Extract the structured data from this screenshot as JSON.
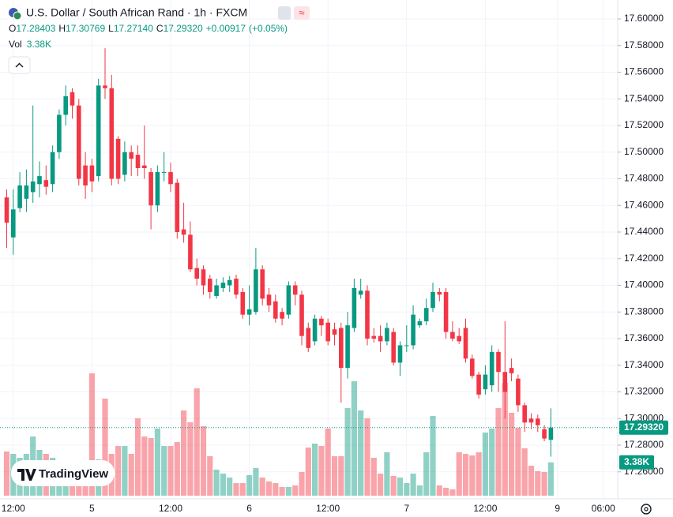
{
  "chart_data": {
    "type": "candlestick",
    "title": "U.S. Dollar / South African Rand · 1h · FXCM",
    "categories": [
      null,
      "12:00",
      null,
      null,
      null,
      null,
      null,
      null,
      null,
      null,
      null,
      null,
      null,
      "5",
      null,
      null,
      null,
      null,
      null,
      null,
      null,
      null,
      null,
      null,
      null,
      "12:00",
      null,
      null,
      null,
      null,
      null,
      null,
      null,
      null,
      null,
      null,
      null,
      "6",
      null,
      null,
      null,
      null,
      null,
      null,
      null,
      null,
      null,
      null,
      null,
      "12:00",
      null,
      null,
      null,
      null,
      null,
      null,
      null,
      null,
      null,
      null,
      null,
      "7",
      null,
      null,
      null,
      null,
      null,
      null,
      null,
      null,
      null,
      null,
      null,
      "12:00",
      null,
      null,
      null,
      null,
      null,
      null,
      null,
      null,
      null,
      null,
      "9",
      null,
      null,
      null,
      null,
      null,
      null,
      "06:00",
      null,
      null
    ],
    "open": [
      17.466,
      17.436,
      17.458,
      17.465,
      17.47,
      17.476,
      17.479,
      17.476,
      17.5,
      17.528,
      17.545,
      17.535,
      17.49,
      17.49,
      17.482,
      17.55,
      17.548,
      17.51,
      17.483,
      17.5,
      17.498,
      17.49,
      17.485,
      17.46,
      17.485,
      17.485,
      17.477,
      17.442,
      17.438,
      17.413,
      17.412,
      17.405,
      17.392,
      17.398,
      17.4,
      17.405,
      17.395,
      17.378,
      17.38,
      17.412,
      17.393,
      17.388,
      17.38,
      17.378,
      17.4,
      17.393,
      17.368,
      17.358,
      17.375,
      17.372,
      17.367,
      17.368,
      17.338,
      17.368,
      17.393,
      17.396,
      17.362,
      17.362,
      17.358,
      17.365,
      17.342,
      17.355,
      17.355,
      17.37,
      17.373,
      17.383,
      17.395,
      17.395,
      17.365,
      17.362,
      17.368,
      17.345,
      17.333,
      17.322,
      17.325,
      17.35,
      17.335,
      17.338,
      17.33,
      17.31,
      17.3,
      17.3,
      17.292,
      17.28403,
      null,
      null,
      null,
      null,
      null,
      null,
      null,
      null,
      null,
      null
    ],
    "high": [
      17.472,
      17.472,
      17.485,
      17.487,
      17.535,
      17.493,
      17.49,
      17.505,
      17.532,
      17.55,
      17.548,
      17.54,
      17.5,
      17.495,
      17.555,
      17.578,
      17.558,
      17.512,
      17.508,
      17.505,
      17.505,
      17.52,
      17.488,
      17.49,
      17.5,
      17.492,
      17.48,
      17.462,
      17.448,
      17.42,
      17.415,
      17.408,
      17.405,
      17.406,
      17.407,
      17.408,
      17.398,
      17.4,
      17.428,
      17.415,
      17.398,
      17.393,
      17.383,
      17.403,
      17.403,
      17.396,
      17.372,
      17.378,
      17.377,
      17.375,
      17.372,
      17.372,
      17.38,
      17.405,
      17.405,
      17.4,
      17.368,
      17.37,
      17.372,
      17.368,
      17.358,
      17.37,
      17.385,
      17.375,
      17.39,
      17.402,
      17.398,
      17.398,
      17.373,
      17.368,
      17.375,
      17.348,
      17.335,
      17.34,
      17.355,
      17.352,
      17.373,
      17.345,
      17.333,
      17.312,
      17.304,
      17.303,
      17.295,
      17.30769,
      null,
      null,
      null,
      null,
      null,
      null,
      null,
      null,
      null,
      null
    ],
    "low": [
      17.428,
      17.423,
      17.455,
      17.455,
      17.462,
      17.466,
      17.468,
      17.47,
      17.495,
      17.52,
      17.525,
      17.475,
      17.465,
      17.47,
      17.478,
      17.54,
      17.475,
      17.476,
      17.478,
      17.482,
      17.482,
      17.48,
      17.442,
      17.455,
      17.478,
      17.47,
      17.435,
      17.432,
      17.41,
      17.4,
      17.393,
      17.39,
      17.39,
      17.395,
      17.395,
      17.39,
      17.375,
      17.37,
      17.378,
      17.385,
      17.38,
      17.372,
      17.37,
      17.375,
      17.385,
      17.355,
      17.35,
      17.355,
      17.362,
      17.355,
      17.355,
      17.312,
      17.33,
      17.365,
      17.39,
      17.355,
      17.357,
      17.35,
      17.355,
      17.34,
      17.332,
      17.35,
      17.352,
      17.368,
      17.37,
      17.38,
      17.388,
      17.36,
      17.358,
      17.356,
      17.342,
      17.33,
      17.315,
      17.318,
      17.32,
      17.32,
      17.3,
      17.328,
      17.305,
      17.29,
      17.292,
      17.29,
      17.283,
      17.2714,
      null,
      null,
      null,
      null,
      null,
      null,
      null,
      null,
      null,
      null
    ],
    "close": [
      17.447,
      17.457,
      17.475,
      17.475,
      17.478,
      17.482,
      17.474,
      17.5,
      17.528,
      17.542,
      17.535,
      17.48,
      17.475,
      17.478,
      17.55,
      17.548,
      17.48,
      17.48,
      17.5,
      17.495,
      17.488,
      17.488,
      17.46,
      17.485,
      17.485,
      17.476,
      17.44,
      17.438,
      17.412,
      17.405,
      17.4,
      17.395,
      17.4,
      17.402,
      17.404,
      17.393,
      17.378,
      17.382,
      17.412,
      17.39,
      17.385,
      17.375,
      17.375,
      17.4,
      17.393,
      17.362,
      17.353,
      17.375,
      17.37,
      17.358,
      17.363,
      17.338,
      17.37,
      17.398,
      17.396,
      17.36,
      17.36,
      17.358,
      17.368,
      17.342,
      17.355,
      17.355,
      17.378,
      17.373,
      17.383,
      17.395,
      17.393,
      17.365,
      17.36,
      17.358,
      17.345,
      17.332,
      17.318,
      17.333,
      17.35,
      17.335,
      17.32,
      17.334,
      17.31,
      17.297,
      17.297,
      17.295,
      17.285,
      17.2932,
      null,
      null,
      null,
      null,
      null,
      null,
      null,
      null,
      null,
      null
    ],
    "volume": [
      4480,
      4240,
      3840,
      4240,
      6000,
      4640,
      4240,
      3840,
      3440,
      3440,
      3440,
      3440,
      3440,
      12400,
      3680,
      9840,
      4240,
      5040,
      5040,
      4240,
      7840,
      6000,
      5840,
      6800,
      5040,
      5040,
      5440,
      8640,
      7440,
      10880,
      7040,
      4000,
      2640,
      2240,
      1840,
      1280,
      1280,
      2080,
      2800,
      1840,
      1440,
      1280,
      880,
      880,
      1040,
      2400,
      4880,
      5280,
      5040,
      6800,
      4000,
      4000,
      8880,
      11600,
      8640,
      7840,
      3840,
      2240,
      4400,
      2000,
      1840,
      1280,
      2240,
      1040,
      4400,
      8080,
      1040,
      800,
      640,
      4400,
      4240,
      4080,
      4400,
      6400,
      6800,
      8880,
      11440,
      8400,
      6880,
      4800,
      3040,
      2480,
      2400,
      3380,
      null,
      null,
      null,
      null,
      null,
      null,
      null,
      null,
      null,
      null
    ],
    "up_color": "#089981",
    "down_color": "#f23645",
    "ylim": [
      17.2421,
      17.6142
    ],
    "yticks": [
      {
        "value": 17.26,
        "label": "17.26000"
      },
      {
        "value": 17.28,
        "label": "17.28000"
      },
      {
        "value": 17.3,
        "label": "17.30000"
      },
      {
        "value": 17.32,
        "label": "17.32000"
      },
      {
        "value": 17.34,
        "label": "17.34000"
      },
      {
        "value": 17.36,
        "label": "17.36000"
      },
      {
        "value": 17.38,
        "label": "17.38000"
      },
      {
        "value": 17.4,
        "label": "17.40000"
      },
      {
        "value": 17.42,
        "label": "17.42000"
      },
      {
        "value": 17.44,
        "label": "17.44000"
      },
      {
        "value": 17.46,
        "label": "17.46000"
      },
      {
        "value": 17.48,
        "label": "17.48000"
      },
      {
        "value": 17.5,
        "label": "17.50000"
      },
      {
        "value": 17.52,
        "label": "17.52000"
      },
      {
        "value": 17.54,
        "label": "17.54000"
      },
      {
        "value": 17.56,
        "label": "17.56000"
      },
      {
        "value": 17.58,
        "label": "17.58000"
      },
      {
        "value": 17.6,
        "label": "17.60000"
      }
    ],
    "grid": true
  },
  "legend": {
    "fields": [
      {
        "key": "O",
        "value": "17.28403"
      },
      {
        "key": "H",
        "value": "17.30769"
      },
      {
        "key": "L",
        "value": "17.27140"
      },
      {
        "key": "C",
        "value": "17.29320"
      }
    ],
    "change": "+0.00917",
    "change_pct": "(+0.05%)",
    "volume_key": "Vol",
    "volume_value": "3.38K"
  },
  "watermark": "TradingView"
}
